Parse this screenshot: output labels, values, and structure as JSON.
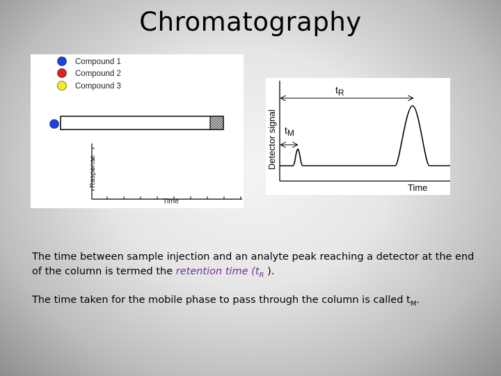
{
  "slide": {
    "title": "Chromatography"
  },
  "left_figure": {
    "legend": [
      {
        "label": "Compound 1",
        "color": "#1f3fe0"
      },
      {
        "label": "Compound 2",
        "color": "#e02020"
      },
      {
        "label": "Compound 3",
        "color": "#f2ee20"
      }
    ],
    "injection_dot_color": "#1f3fe0",
    "ylabel": "Response",
    "xlabel": "Time"
  },
  "right_figure": {
    "ylabel": "Detector signal",
    "xlabel": "Time",
    "tR_main": "t",
    "tR_sub": "R",
    "tM_main": "t",
    "tM_sub": "M"
  },
  "paragraphs": {
    "p1_before": "The time between sample injection and an analyte peak reaching a detector at the end of the column is termed the ",
    "p1_em": "retention time",
    "p1_paren_open": " (t",
    "p1_sub": "R",
    "p1_after": " ).",
    "p2_before": "The time taken for the mobile phase to pass through the column is called t",
    "p2_sub": "M",
    "p2_after": "."
  },
  "colors": {
    "accent_emphasis": "#7030a0"
  }
}
